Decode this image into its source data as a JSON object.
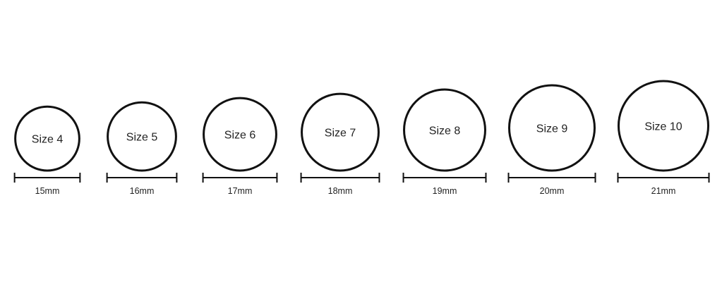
{
  "chart_data": {
    "type": "ring-size-diagram",
    "stroke_color": "#111111",
    "text_color": "#222222",
    "rings": [
      {
        "size_label": "Size 4",
        "diameter_label": "15mm",
        "diameter_mm": 15
      },
      {
        "size_label": "Size 5",
        "diameter_label": "16mm",
        "diameter_mm": 16
      },
      {
        "size_label": "Size 6",
        "diameter_label": "17mm",
        "diameter_mm": 17
      },
      {
        "size_label": "Size 7",
        "diameter_label": "18mm",
        "diameter_mm": 18
      },
      {
        "size_label": "Size 8",
        "diameter_label": "19mm",
        "diameter_mm": 19
      },
      {
        "size_label": "Size 9",
        "diameter_label": "20mm",
        "diameter_mm": 20
      },
      {
        "size_label": "Size 10",
        "diameter_label": "21mm",
        "diameter_mm": 21
      }
    ]
  }
}
